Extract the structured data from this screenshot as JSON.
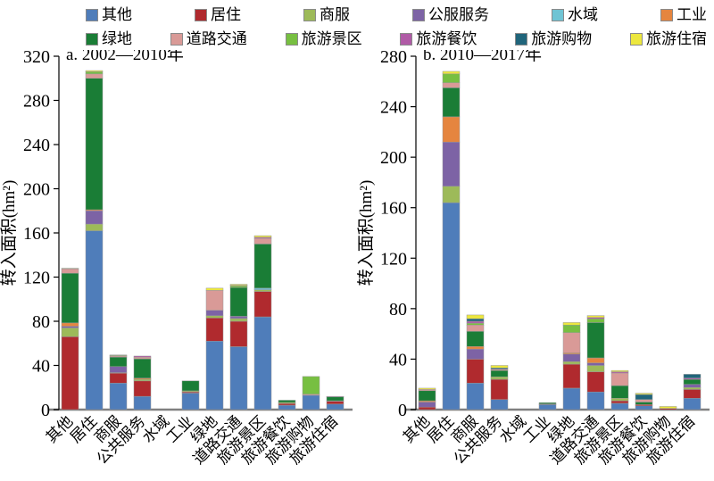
{
  "legend": {
    "rows": [
      [
        {
          "label": "其他",
          "color": "#4f7dba"
        },
        {
          "label": "居住",
          "color": "#b02a2e"
        },
        {
          "label": "商服",
          "color": "#9dba59"
        },
        {
          "label": "公服服务",
          "color": "#7d63a5"
        },
        {
          "label": "水域",
          "color": "#6fc4d4"
        },
        {
          "label": "工业",
          "color": "#e5853f"
        }
      ],
      [
        {
          "label": "绿地",
          "color": "#1a7d36"
        },
        {
          "label": "道路交通",
          "color": "#d99a97"
        },
        {
          "label": "旅游景区",
          "color": "#77bf41"
        },
        {
          "label": "旅游餐饮",
          "color": "#b05ba6"
        },
        {
          "label": "旅游购物",
          "color": "#20657b"
        },
        {
          "label": "旅游住宿",
          "color": "#ece73e"
        }
      ]
    ]
  },
  "chart_data": [
    {
      "type": "bar",
      "stacked": true,
      "title": "a. 2002—2010年",
      "ylabel": "转入面积(hm²)",
      "ylim": [
        0,
        320
      ],
      "ytick_step": 40,
      "grid": false,
      "categories": [
        "其他",
        "居住",
        "商服",
        "公共服务",
        "水域",
        "工业",
        "绿地",
        "道路交通",
        "旅游景区",
        "旅游餐饮",
        "旅游购物",
        "旅游住宿"
      ],
      "series": [
        {
          "name": "其他",
          "color": "#4f7dba",
          "values": [
            0,
            162,
            24,
            12,
            0,
            15,
            62,
            57,
            84,
            4,
            13,
            5
          ]
        },
        {
          "name": "居住",
          "color": "#b02a2e",
          "values": [
            66,
            0,
            9,
            14,
            0,
            1,
            21,
            23,
            23,
            1.5,
            0,
            2.5
          ]
        },
        {
          "name": "商服",
          "color": "#9dba59",
          "values": [
            8,
            6,
            0.5,
            1.5,
            0,
            1,
            2,
            2.5,
            1.5,
            1,
            0,
            0
          ]
        },
        {
          "name": "公服服务",
          "color": "#7d63a5",
          "values": [
            1.5,
            12,
            5.5,
            0,
            0,
            0,
            5,
            2,
            0,
            0,
            0,
            0.5
          ]
        },
        {
          "name": "水域",
          "color": "#6fc4d4",
          "values": [
            0,
            0,
            0,
            0,
            0,
            0,
            0,
            0,
            1.5,
            0,
            0,
            0
          ]
        },
        {
          "name": "工业",
          "color": "#e5853f",
          "values": [
            3,
            1,
            0,
            1,
            0,
            0,
            0,
            0,
            0,
            0,
            0,
            0
          ]
        },
        {
          "name": "绿地",
          "color": "#1a7d36",
          "values": [
            45,
            119,
            8.5,
            17.5,
            0,
            9,
            0,
            26,
            40,
            2,
            0,
            3.5
          ]
        },
        {
          "name": "道路交通",
          "color": "#d99a97",
          "values": [
            4,
            4,
            1,
            1.5,
            0,
            0,
            18,
            0,
            5,
            0,
            1,
            0
          ]
        },
        {
          "name": "旅游景区",
          "color": "#77bf41",
          "values": [
            0.5,
            2,
            0.5,
            0,
            0,
            0,
            0,
            1.5,
            0,
            0,
            16,
            0
          ]
        },
        {
          "name": "旅游餐饮",
          "color": "#b05ba6",
          "values": [
            0,
            0,
            0,
            1,
            0,
            0,
            0,
            0.5,
            1,
            0,
            0,
            0.5
          ]
        },
        {
          "name": "旅游购物",
          "color": "#20657b",
          "values": [
            0,
            0,
            0,
            0,
            0,
            0,
            0,
            0,
            0,
            0,
            0,
            0
          ]
        },
        {
          "name": "旅游住宿",
          "color": "#ece73e",
          "values": [
            0,
            1,
            0.5,
            0,
            0,
            0,
            2,
            1,
            1.5,
            0,
            0,
            0
          ]
        }
      ]
    },
    {
      "type": "bar",
      "stacked": true,
      "title": "b. 2010—2017年",
      "ylabel": "转入面积(hm²)",
      "ylim": [
        0,
        280
      ],
      "ytick_step": 40,
      "grid": false,
      "categories": [
        "其他",
        "居住",
        "商服",
        "公共服务",
        "水域",
        "工业",
        "绿地",
        "道路交通",
        "旅游景区",
        "旅游餐饮",
        "旅游购物",
        "旅游住宿"
      ],
      "series": [
        {
          "name": "其他",
          "color": "#4f7dba",
          "values": [
            0,
            164,
            21,
            8,
            0,
            4,
            17,
            14,
            5,
            3,
            0,
            9
          ]
        },
        {
          "name": "居住",
          "color": "#b02a2e",
          "values": [
            2,
            0,
            19,
            16,
            0,
            0.5,
            19,
            16,
            2,
            1,
            1,
            7
          ]
        },
        {
          "name": "商服",
          "color": "#9dba59",
          "values": [
            0,
            13,
            0,
            2,
            0,
            0,
            2,
            5,
            2,
            0,
            0,
            1.5
          ]
        },
        {
          "name": "公服服务",
          "color": "#7d63a5",
          "values": [
            4,
            35,
            8,
            0,
            0,
            0,
            6,
            2,
            0,
            0,
            0,
            2.5
          ]
        },
        {
          "name": "水域",
          "color": "#6fc4d4",
          "values": [
            0,
            0,
            0,
            0,
            0,
            0,
            0,
            0,
            0,
            0,
            0,
            0
          ]
        },
        {
          "name": "工业",
          "color": "#e5853f",
          "values": [
            1,
            20,
            2,
            0,
            0,
            0,
            1,
            4,
            0,
            0,
            0,
            0
          ]
        },
        {
          "name": "绿地",
          "color": "#1a7d36",
          "values": [
            8,
            23,
            12,
            5,
            0,
            1,
            0,
            28,
            10,
            2,
            0,
            4
          ]
        },
        {
          "name": "道路交通",
          "color": "#d99a97",
          "values": [
            1,
            4,
            5,
            1,
            0,
            0,
            16,
            0,
            10,
            2,
            0,
            0
          ]
        },
        {
          "name": "旅游景区",
          "color": "#77bf41",
          "values": [
            0,
            7,
            1.5,
            0,
            0,
            0,
            6,
            3,
            0,
            0,
            0,
            0
          ]
        },
        {
          "name": "旅游餐饮",
          "color": "#b05ba6",
          "values": [
            0,
            0,
            1.5,
            0,
            0,
            0,
            0,
            1,
            1,
            0,
            0,
            1
          ]
        },
        {
          "name": "旅游购物",
          "color": "#20657b",
          "values": [
            0,
            0,
            2,
            1,
            0,
            0,
            0,
            0,
            0,
            4,
            0,
            3
          ]
        },
        {
          "name": "旅游住宿",
          "color": "#ece73e",
          "values": [
            1,
            2,
            3,
            2,
            0,
            0,
            2,
            1.5,
            1,
            1,
            1.5,
            0
          ]
        }
      ]
    }
  ]
}
